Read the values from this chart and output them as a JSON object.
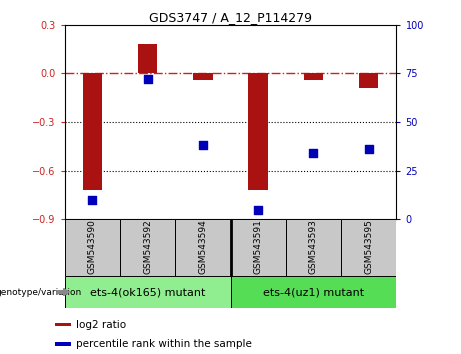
{
  "title": "GDS3747 / A_12_P114279",
  "samples": [
    "GSM543590",
    "GSM543592",
    "GSM543594",
    "GSM543591",
    "GSM543593",
    "GSM543595"
  ],
  "log2_ratio": [
    -0.72,
    0.18,
    -0.04,
    -0.72,
    -0.04,
    -0.09
  ],
  "percentile_rank": [
    10,
    72,
    38,
    5,
    34,
    36
  ],
  "ylim_left": [
    -0.9,
    0.3
  ],
  "ylim_right": [
    0,
    100
  ],
  "yticks_left": [
    0.3,
    0,
    -0.3,
    -0.6,
    -0.9
  ],
  "yticks_right": [
    100,
    75,
    50,
    25,
    0
  ],
  "groups": [
    {
      "label": "ets-4(ok165) mutant",
      "indices": [
        0,
        1,
        2
      ],
      "color": "#90EE90"
    },
    {
      "label": "ets-4(uz1) mutant",
      "indices": [
        3,
        4,
        5
      ],
      "color": "#55DD55"
    }
  ],
  "bar_color": "#AA1111",
  "dot_color": "#0000BB",
  "hline_color": "#CC2222",
  "hline_style": "-.",
  "grid_color": "#000000",
  "bg_color": "#FFFFFF",
  "tick_color_left": "#CC2222",
  "tick_color_right": "#0000BB",
  "bar_width": 0.35,
  "dot_size": 30,
  "sample_box_color": "#C8C8C8",
  "genotype_label": "genotype/variation",
  "legend_log2_color": "#AA1111",
  "legend_pct_color": "#0000BB",
  "title_fontsize": 9,
  "tick_fontsize": 7,
  "sample_fontsize": 6.5,
  "group_fontsize": 8,
  "legend_fontsize": 7.5
}
